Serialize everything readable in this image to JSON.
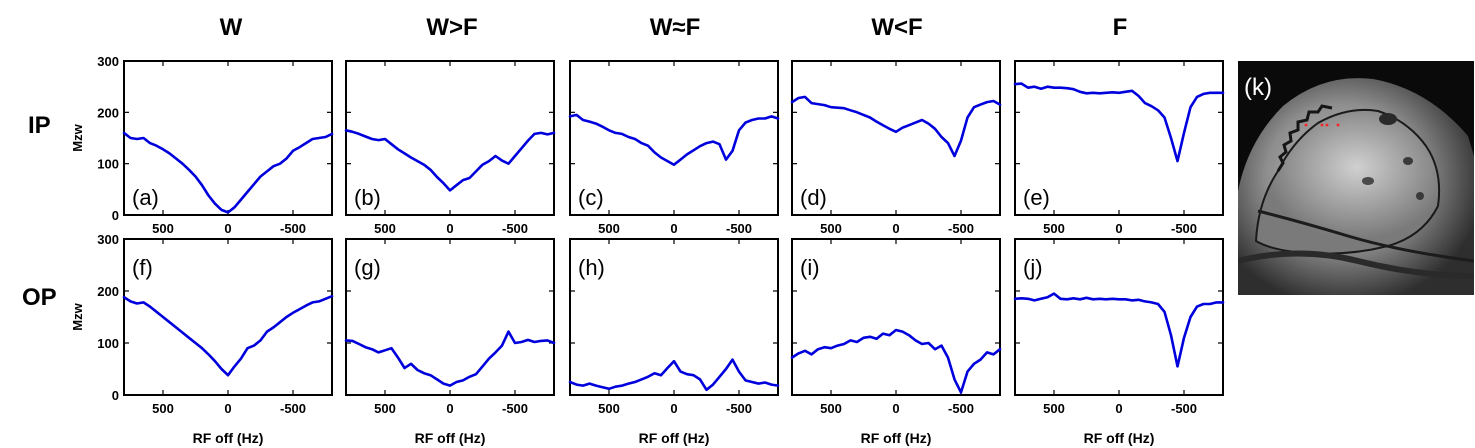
{
  "columns": [
    "W",
    "W>F",
    "W≈F",
    "W<F",
    "F"
  ],
  "rows": [
    "IP",
    "OP"
  ],
  "image_panel": {
    "letter": "(k)",
    "description": "MRI slice"
  },
  "colors": {
    "line": "#0000dd",
    "axes": "#000000",
    "roi": "#ff2020"
  },
  "chart_data": [
    {
      "type": "line",
      "id": "a",
      "panel_label": "(a)",
      "row": "IP",
      "column": "W",
      "title": "",
      "xlabel": "",
      "ylabel": "Mzw",
      "xlim": [
        800,
        -800
      ],
      "ylim": [
        0,
        300
      ],
      "xticks": [
        500,
        0,
        -500
      ],
      "yticks": [
        0,
        100,
        200,
        300
      ],
      "x": [
        800,
        750,
        700,
        650,
        600,
        550,
        500,
        450,
        400,
        350,
        300,
        250,
        200,
        150,
        100,
        50,
        0,
        -50,
        -100,
        -150,
        -200,
        -250,
        -300,
        -350,
        -400,
        -450,
        -500,
        -550,
        -600,
        -650,
        -700,
        -750,
        -800
      ],
      "series": [
        {
          "name": "Mzw",
          "values": [
            160,
            150,
            148,
            150,
            140,
            135,
            128,
            120,
            110,
            100,
            88,
            75,
            58,
            38,
            22,
            10,
            5,
            15,
            30,
            45,
            60,
            75,
            85,
            95,
            100,
            110,
            125,
            132,
            140,
            148,
            150,
            152,
            158
          ]
        }
      ]
    },
    {
      "type": "line",
      "id": "b",
      "panel_label": "(b)",
      "row": "IP",
      "column": "W>F",
      "title": "",
      "xlabel": "",
      "ylabel": "",
      "xlim": [
        800,
        -800
      ],
      "ylim": [
        0,
        300
      ],
      "xticks": [
        500,
        0,
        -500
      ],
      "yticks": [
        0,
        100,
        200,
        300
      ],
      "x": [
        800,
        750,
        700,
        650,
        600,
        550,
        500,
        450,
        400,
        350,
        300,
        250,
        200,
        150,
        100,
        50,
        0,
        -50,
        -100,
        -150,
        -200,
        -250,
        -300,
        -350,
        -400,
        -450,
        -500,
        -550,
        -600,
        -650,
        -700,
        -750,
        -800
      ],
      "series": [
        {
          "name": "Mzw",
          "values": [
            165,
            162,
            158,
            153,
            148,
            146,
            148,
            138,
            128,
            120,
            112,
            105,
            98,
            88,
            74,
            62,
            48,
            58,
            68,
            72,
            85,
            98,
            105,
            115,
            106,
            100,
            115,
            130,
            145,
            158,
            160,
            157,
            160
          ]
        }
      ]
    },
    {
      "type": "line",
      "id": "c",
      "panel_label": "(c)",
      "row": "IP",
      "column": "W≈F",
      "title": "",
      "xlabel": "",
      "ylabel": "",
      "xlim": [
        800,
        -800
      ],
      "ylim": [
        0,
        300
      ],
      "xticks": [
        500,
        0,
        -500
      ],
      "yticks": [
        0,
        100,
        200,
        300
      ],
      "x": [
        800,
        750,
        700,
        650,
        600,
        550,
        500,
        450,
        400,
        350,
        300,
        250,
        200,
        150,
        100,
        50,
        0,
        -50,
        -100,
        -150,
        -200,
        -250,
        -300,
        -350,
        -400,
        -450,
        -500,
        -550,
        -600,
        -650,
        -700,
        -750,
        -800
      ],
      "series": [
        {
          "name": "Mzw",
          "values": [
            192,
            195,
            185,
            182,
            178,
            172,
            165,
            160,
            158,
            152,
            148,
            140,
            135,
            122,
            112,
            105,
            98,
            108,
            118,
            126,
            134,
            140,
            143,
            138,
            108,
            125,
            165,
            180,
            185,
            188,
            188,
            192,
            188
          ]
        }
      ]
    },
    {
      "type": "line",
      "id": "d",
      "panel_label": "(d)",
      "row": "IP",
      "column": "W<F",
      "title": "",
      "xlabel": "",
      "ylabel": "",
      "xlim": [
        800,
        -800
      ],
      "ylim": [
        0,
        300
      ],
      "xticks": [
        500,
        0,
        -500
      ],
      "yticks": [
        0,
        100,
        200,
        300
      ],
      "x": [
        800,
        750,
        700,
        650,
        600,
        550,
        500,
        450,
        400,
        350,
        300,
        250,
        200,
        150,
        100,
        50,
        0,
        -50,
        -100,
        -150,
        -200,
        -250,
        -300,
        -350,
        -400,
        -450,
        -500,
        -550,
        -600,
        -650,
        -700,
        -750,
        -800
      ],
      "series": [
        {
          "name": "Mzw",
          "values": [
            220,
            228,
            230,
            218,
            216,
            214,
            210,
            209,
            208,
            204,
            200,
            195,
            190,
            182,
            175,
            168,
            162,
            170,
            175,
            180,
            185,
            178,
            168,
            152,
            140,
            115,
            145,
            190,
            210,
            215,
            220,
            222,
            215
          ]
        }
      ]
    },
    {
      "type": "line",
      "id": "e",
      "panel_label": "(e)",
      "row": "IP",
      "column": "F",
      "title": "",
      "xlabel": "",
      "ylabel": "",
      "xlim": [
        800,
        -800
      ],
      "ylim": [
        0,
        300
      ],
      "xticks": [
        500,
        0,
        -500
      ],
      "yticks": [
        0,
        100,
        200,
        300
      ],
      "x": [
        800,
        750,
        700,
        650,
        600,
        550,
        500,
        450,
        400,
        350,
        300,
        250,
        200,
        150,
        100,
        50,
        0,
        -50,
        -100,
        -150,
        -200,
        -250,
        -300,
        -350,
        -400,
        -450,
        -500,
        -550,
        -600,
        -650,
        -700,
        -750,
        -800
      ],
      "series": [
        {
          "name": "Mzw",
          "values": [
            255,
            256,
            248,
            250,
            246,
            250,
            248,
            248,
            247,
            245,
            240,
            237,
            238,
            237,
            238,
            239,
            238,
            240,
            242,
            232,
            218,
            212,
            204,
            190,
            150,
            105,
            160,
            210,
            230,
            236,
            238,
            238,
            238
          ]
        }
      ]
    },
    {
      "type": "line",
      "id": "f",
      "panel_label": "(f)",
      "row": "OP",
      "column": "W",
      "title": "",
      "xlabel": "RF off (Hz)",
      "ylabel": "Mzw",
      "xlim": [
        800,
        -800
      ],
      "ylim": [
        0,
        300
      ],
      "xticks": [
        500,
        0,
        -500
      ],
      "yticks": [
        0,
        100,
        200,
        300
      ],
      "x": [
        800,
        750,
        700,
        650,
        600,
        550,
        500,
        450,
        400,
        350,
        300,
        250,
        200,
        150,
        100,
        50,
        0,
        -50,
        -100,
        -150,
        -200,
        -250,
        -300,
        -350,
        -400,
        -450,
        -500,
        -550,
        -600,
        -650,
        -700,
        -750,
        -800
      ],
      "series": [
        {
          "name": "Mzw",
          "values": [
            188,
            180,
            176,
            178,
            170,
            160,
            150,
            140,
            130,
            120,
            110,
            100,
            90,
            78,
            65,
            50,
            38,
            55,
            70,
            90,
            95,
            105,
            122,
            130,
            140,
            150,
            158,
            165,
            172,
            178,
            180,
            185,
            190
          ]
        }
      ]
    },
    {
      "type": "line",
      "id": "g",
      "panel_label": "(g)",
      "row": "OP",
      "column": "W>F",
      "title": "",
      "xlabel": "RF off (Hz)",
      "ylabel": "",
      "xlim": [
        800,
        -800
      ],
      "ylim": [
        0,
        300
      ],
      "xticks": [
        500,
        0,
        -500
      ],
      "yticks": [
        0,
        100,
        200,
        300
      ],
      "x": [
        800,
        750,
        700,
        650,
        600,
        550,
        500,
        450,
        400,
        350,
        300,
        250,
        200,
        150,
        100,
        50,
        0,
        -50,
        -100,
        -150,
        -200,
        -250,
        -300,
        -350,
        -400,
        -450,
        -500,
        -550,
        -600,
        -650,
        -700,
        -750,
        -800
      ],
      "series": [
        {
          "name": "Mzw",
          "values": [
            105,
            104,
            98,
            92,
            88,
            82,
            86,
            90,
            72,
            52,
            60,
            48,
            42,
            38,
            30,
            22,
            18,
            25,
            28,
            35,
            40,
            55,
            70,
            82,
            95,
            122,
            100,
            102,
            106,
            102,
            104,
            105,
            100
          ]
        }
      ]
    },
    {
      "type": "line",
      "id": "h",
      "panel_label": "(h)",
      "row": "OP",
      "column": "W≈F",
      "title": "",
      "xlabel": "RF off (Hz)",
      "ylabel": "",
      "xlim": [
        800,
        -800
      ],
      "ylim": [
        0,
        300
      ],
      "xticks": [
        500,
        0,
        -500
      ],
      "yticks": [
        0,
        100,
        200,
        300
      ],
      "x": [
        800,
        750,
        700,
        650,
        600,
        550,
        500,
        450,
        400,
        350,
        300,
        250,
        200,
        150,
        100,
        50,
        0,
        -50,
        -100,
        -150,
        -200,
        -250,
        -300,
        -350,
        -400,
        -450,
        -500,
        -550,
        -600,
        -650,
        -700,
        -750,
        -800
      ],
      "series": [
        {
          "name": "Mzw",
          "values": [
            25,
            20,
            18,
            22,
            18,
            15,
            12,
            16,
            18,
            22,
            25,
            30,
            35,
            42,
            38,
            52,
            65,
            45,
            40,
            38,
            30,
            10,
            20,
            35,
            50,
            68,
            45,
            28,
            25,
            22,
            24,
            20,
            18
          ]
        }
      ]
    },
    {
      "type": "line",
      "id": "i",
      "panel_label": "(i)",
      "row": "OP",
      "column": "W<F",
      "title": "",
      "xlabel": "RF off (Hz)",
      "ylabel": "",
      "xlim": [
        800,
        -800
      ],
      "ylim": [
        0,
        300
      ],
      "xticks": [
        500,
        0,
        -500
      ],
      "yticks": [
        0,
        100,
        200,
        300
      ],
      "x": [
        800,
        750,
        700,
        650,
        600,
        550,
        500,
        450,
        400,
        350,
        300,
        250,
        200,
        150,
        100,
        50,
        0,
        -50,
        -100,
        -150,
        -200,
        -250,
        -300,
        -350,
        -400,
        -450,
        -500,
        -550,
        -600,
        -650,
        -700,
        -750,
        -800
      ],
      "series": [
        {
          "name": "Mzw",
          "values": [
            72,
            80,
            85,
            78,
            88,
            92,
            90,
            95,
            98,
            105,
            102,
            110,
            112,
            108,
            118,
            115,
            125,
            122,
            115,
            105,
            98,
            100,
            88,
            95,
            72,
            30,
            5,
            45,
            60,
            68,
            82,
            78,
            88
          ]
        }
      ]
    },
    {
      "type": "line",
      "id": "j",
      "panel_label": "(j)",
      "row": "OP",
      "column": "F",
      "title": "",
      "xlabel": "RF off (Hz)",
      "ylabel": "",
      "xlim": [
        800,
        -800
      ],
      "ylim": [
        0,
        300
      ],
      "xticks": [
        500,
        0,
        -500
      ],
      "yticks": [
        0,
        100,
        200,
        300
      ],
      "x": [
        800,
        750,
        700,
        650,
        600,
        550,
        500,
        450,
        400,
        350,
        300,
        250,
        200,
        150,
        100,
        50,
        0,
        -50,
        -100,
        -150,
        -200,
        -250,
        -300,
        -350,
        -400,
        -450,
        -500,
        -550,
        -600,
        -650,
        -700,
        -750,
        -800
      ],
      "series": [
        {
          "name": "Mzw",
          "values": [
            185,
            186,
            185,
            182,
            185,
            188,
            195,
            185,
            184,
            186,
            184,
            187,
            184,
            185,
            184,
            185,
            184,
            184,
            182,
            183,
            180,
            178,
            175,
            160,
            115,
            55,
            110,
            150,
            170,
            175,
            175,
            178,
            178
          ]
        }
      ]
    }
  ]
}
